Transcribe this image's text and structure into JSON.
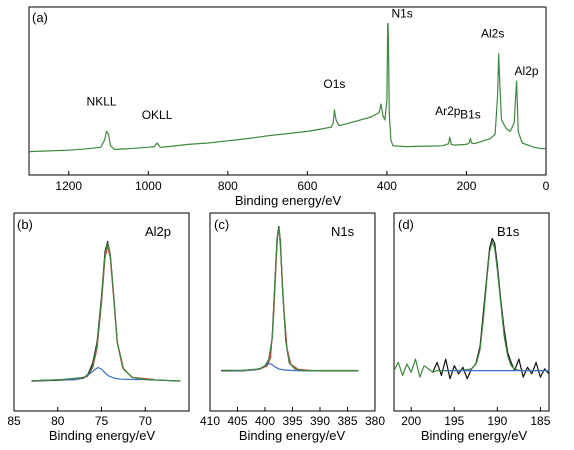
{
  "colors": {
    "spectrum": "#3c8a3c",
    "data_black": "#111111",
    "fit_red": "#d8402c",
    "fit_blue": "#3c6cc8",
    "fit_green": "#3c8a3c",
    "axis": "#000000"
  },
  "chart_data": [
    {
      "panel": "(a)",
      "type": "line",
      "title": "",
      "xlabel": "Binding energy/eV",
      "ylabel": "",
      "xlim": [
        1300,
        0
      ],
      "ylim": [
        0,
        100
      ],
      "x_reversed": true,
      "x_ticks": [
        1200,
        1000,
        800,
        600,
        400,
        200,
        0
      ],
      "annotations": [
        {
          "label": "NKLL",
          "x": 1105
        },
        {
          "label": "OKLL",
          "x": 978
        },
        {
          "label": "O1s",
          "x": 532
        },
        {
          "label": "N1s",
          "x": 397
        },
        {
          "label": "Ar2p",
          "x": 242
        },
        {
          "label": "B1s",
          "x": 190
        },
        {
          "label": "Al2s",
          "x": 119
        },
        {
          "label": "Al2p",
          "x": 74
        }
      ],
      "series": [
        {
          "color": "#3c8a3c",
          "x": [
            1300,
            1250,
            1200,
            1150,
            1120,
            1110,
            1105,
            1100,
            1095,
            1085,
            1050,
            1000,
            985,
            978,
            970,
            950,
            900,
            850,
            800,
            750,
            700,
            650,
            600,
            560,
            540,
            535,
            532,
            528,
            520,
            480,
            440,
            420,
            415,
            410,
            405,
            400,
            398,
            397,
            396,
            394,
            390,
            385,
            350,
            300,
            260,
            245,
            242,
            238,
            230,
            200,
            193,
            190,
            187,
            180,
            140,
            128,
            122,
            119,
            116,
            112,
            100,
            90,
            80,
            76,
            74,
            72,
            70,
            60,
            30,
            10,
            0
          ],
          "y": [
            10,
            10.5,
            11,
            12,
            13,
            18,
            24,
            22,
            14,
            11.5,
            12,
            13,
            13.5,
            16,
            13,
            13.5,
            15,
            16,
            17.5,
            19,
            21,
            22.5,
            24,
            26,
            27,
            30,
            39,
            32,
            28,
            31,
            34,
            37,
            43,
            35,
            32,
            46,
            98,
            99,
            80,
            36,
            18,
            14,
            13.5,
            13.8,
            14,
            15.5,
            20,
            15,
            14.5,
            15,
            16,
            19,
            16,
            15.5,
            19,
            22,
            48,
            78,
            55,
            32,
            26,
            24,
            30,
            50,
            59,
            42,
            24,
            16,
            13,
            12,
            12
          ]
        }
      ]
    },
    {
      "panel": "(b)",
      "type": "line",
      "title": "Al2p",
      "xlabel": "Binding energy/eV",
      "ylabel": "",
      "xlim": [
        85,
        65
      ],
      "ylim": [
        0,
        100
      ],
      "x_reversed": true,
      "x_ticks": [
        85,
        80,
        75,
        70
      ],
      "series": [
        {
          "color": "#111111",
          "x": [
            83,
            80,
            78,
            77,
            76.5,
            76,
            75.5,
            75,
            74.6,
            74.3,
            74,
            73.6,
            73.2,
            72.5,
            71.5,
            70,
            68,
            66
          ],
          "y": [
            6,
            6.5,
            7,
            8,
            11,
            18,
            32,
            62,
            92,
            99,
            90,
            62,
            32,
            14,
            8.5,
            7,
            6.5,
            6
          ]
        },
        {
          "color": "#d8402c",
          "x": [
            82,
            78,
            76.6,
            76,
            75.5,
            75,
            74.6,
            74.3,
            74,
            73.6,
            73.2,
            72.6,
            71.5,
            69
          ],
          "y": [
            6.5,
            7,
            9,
            15,
            28,
            58,
            88,
            96,
            88,
            60,
            32,
            15,
            8.5,
            7
          ]
        },
        {
          "color": "#3c6cc8",
          "x": [
            82,
            78,
            77,
            76.4,
            75.8,
            75.4,
            75,
            74.6,
            74.2,
            73.6,
            72.8,
            71,
            69
          ],
          "y": [
            6.5,
            7,
            8.5,
            10.5,
            13.5,
            15,
            14,
            11.5,
            9.5,
            8,
            7.2,
            7,
            7
          ]
        },
        {
          "color": "#3c8a3c",
          "x": [
            83,
            80,
            77,
            76.4,
            76,
            75.5,
            75,
            74.6,
            74.3,
            74,
            73.6,
            73.2,
            72.5,
            71.5,
            70,
            68,
            66
          ],
          "y": [
            6.2,
            6.8,
            8.5,
            11,
            16,
            30,
            60,
            90,
            98,
            90,
            62,
            32,
            14,
            8.5,
            7,
            6.5,
            6
          ]
        }
      ]
    },
    {
      "panel": "(c)",
      "type": "line",
      "title": "N1s",
      "xlabel": "Binding energy/eV",
      "ylabel": "",
      "xlim": [
        410,
        380
      ],
      "ylim": [
        0,
        100
      ],
      "x_reversed": true,
      "x_ticks": [
        410,
        405,
        400,
        395,
        390,
        385,
        380
      ],
      "series": [
        {
          "color": "#111111",
          "x": [
            408,
            404,
            401,
            400,
            399.3,
            398.7,
            398.2,
            397.8,
            397.5,
            397.2,
            396.8,
            396.2,
            395.6,
            394.5,
            393,
            390,
            386,
            383
          ],
          "y": [
            10,
            10,
            11,
            13,
            17,
            30,
            65,
            92,
            99,
            90,
            60,
            28,
            15,
            11,
            10,
            10,
            10,
            10
          ]
        },
        {
          "color": "#d8402c",
          "x": [
            404,
            401,
            399.6,
            399,
            398.5,
            398,
            397.7,
            397.4,
            397.1,
            396.6,
            396,
            395.3,
            394,
            391
          ],
          "y": [
            10,
            11,
            13,
            18,
            40,
            75,
            95,
            96,
            82,
            50,
            24,
            14,
            11,
            10
          ]
        },
        {
          "color": "#3c6cc8",
          "x": [
            406,
            402,
            400.8,
            400,
            399.4,
            398.8,
            398.2,
            397.4,
            396.4,
            394,
            390
          ],
          "y": [
            10,
            10.5,
            11.5,
            13,
            14.5,
            14,
            12.5,
            11,
            10.5,
            10,
            10
          ]
        },
        {
          "color": "#3c8a3c",
          "x": [
            408,
            404,
            401,
            400,
            399.3,
            398.7,
            398.2,
            397.8,
            397.5,
            397.2,
            396.8,
            396.2,
            395.6,
            394.5,
            393,
            390,
            386,
            383
          ],
          "y": [
            10.3,
            10.3,
            11.2,
            13.2,
            17,
            30,
            64,
            91,
            98,
            89,
            59,
            28,
            15,
            11,
            10.2,
            10.2,
            10.2,
            10.2
          ]
        }
      ]
    },
    {
      "panel": "(d)",
      "type": "line",
      "title": "B1s",
      "xlabel": "Binding energy/eV",
      "ylabel": "",
      "xlim": [
        202,
        184
      ],
      "ylim": [
        0,
        100
      ],
      "x_reversed": true,
      "x_ticks": [
        200,
        195,
        190,
        185
      ],
      "series": [
        {
          "color": "#111111",
          "x": [
            197.5,
            197,
            196.5,
            196,
            195.5,
            195,
            194.5,
            194,
            193.5,
            193,
            192.5,
            192,
            191.6,
            191.2,
            190.9,
            190.6,
            190.3,
            190,
            189.6,
            189.2,
            188.8,
            188.4,
            188,
            187.5,
            187,
            186.5,
            186,
            185.5,
            185,
            184.5,
            184
          ],
          "y": [
            14,
            20,
            12,
            22,
            10,
            18,
            13,
            17,
            10,
            16,
            19,
            30,
            52,
            74,
            90,
            96,
            93,
            80,
            58,
            40,
            26,
            20,
            15,
            22,
            11,
            17,
            13,
            20,
            11,
            16,
            13
          ]
        },
        {
          "color": "#3c8a3c",
          "x": [
            202,
            201.5,
            201,
            200.5,
            200,
            199.5,
            199,
            198.5,
            198,
            197.5,
            197,
            196,
            195,
            194,
            193,
            192.4,
            192,
            191.6,
            191.2,
            190.9,
            190.6,
            190.3,
            190,
            189.6,
            189.2,
            188.8,
            188.4,
            188,
            187.5,
            187,
            186,
            185,
            184
          ],
          "y": [
            15,
            20,
            12,
            19,
            14,
            22,
            11,
            18,
            16,
            14,
            15,
            15,
            15,
            15.2,
            16,
            20,
            28,
            48,
            72,
            88,
            94,
            90,
            77,
            56,
            36,
            24,
            18,
            16,
            15.2,
            15,
            15,
            15,
            15
          ]
        },
        {
          "color": "#3c6cc8",
          "x": [
            196,
            184
          ],
          "y": [
            15,
            15
          ]
        }
      ]
    }
  ]
}
